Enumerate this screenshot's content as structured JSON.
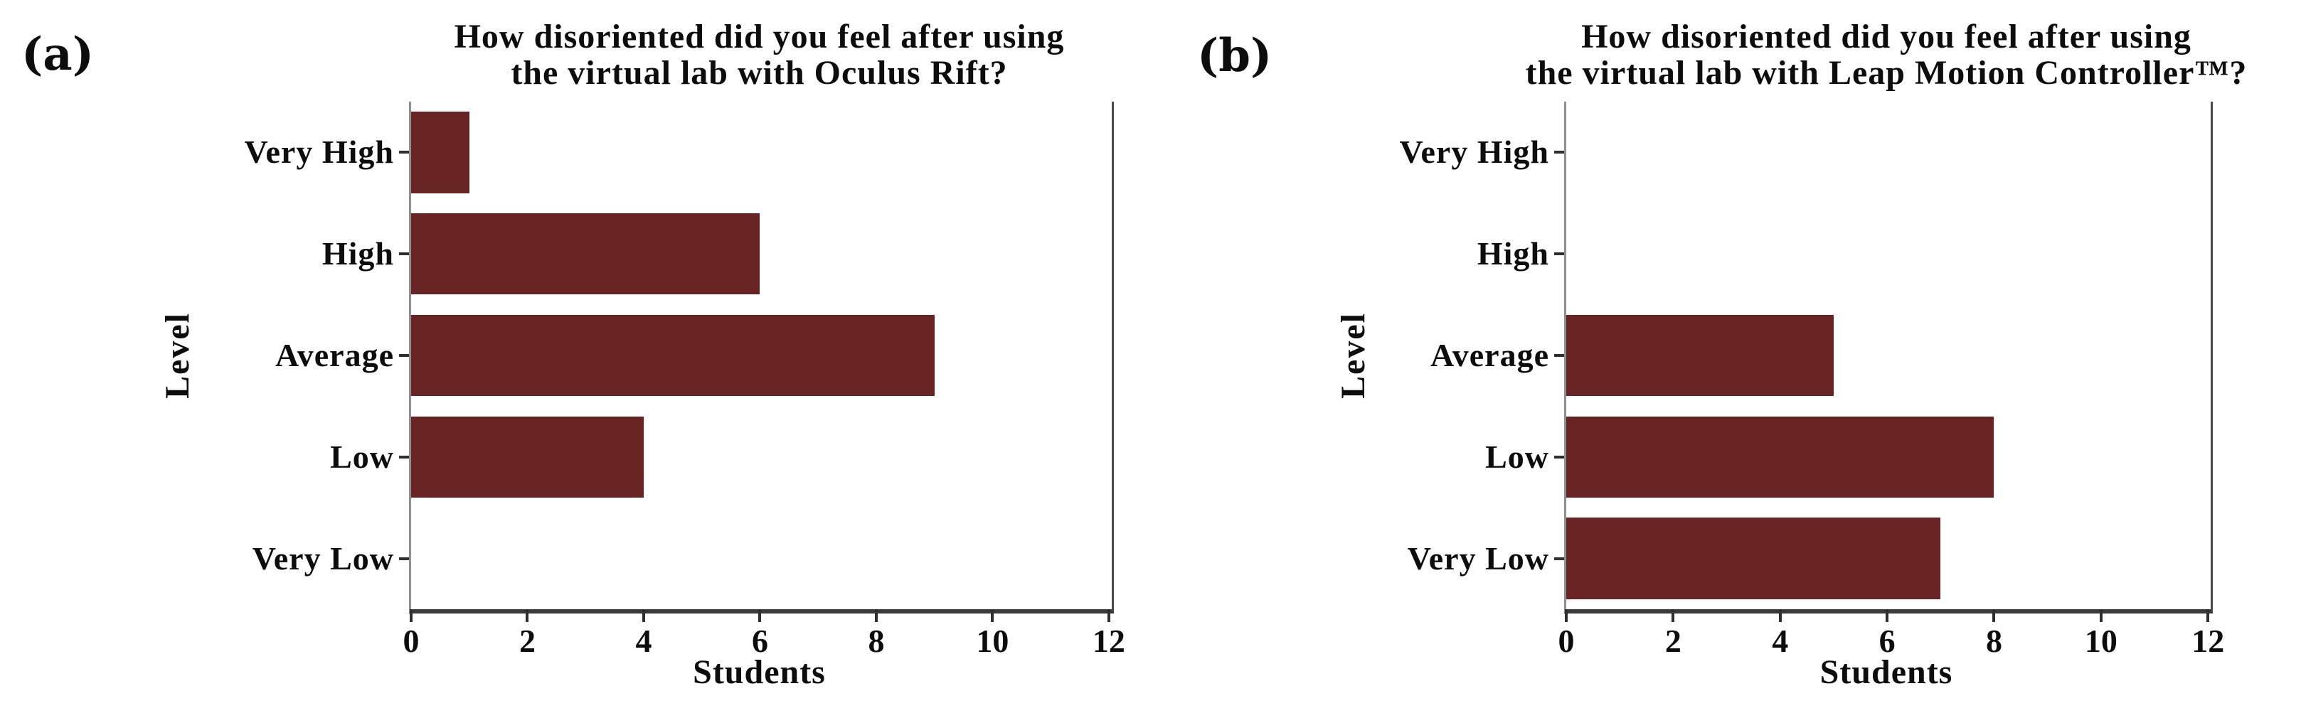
{
  "figure": {
    "background": "#ffffff",
    "text_color": "#0d0d0d",
    "bottom_axis_color": "#3a3a3a",
    "side_spine_color": "#8f8f8f",
    "bar_color": "#672422"
  },
  "chart_data": [
    {
      "type": "bar",
      "orientation": "horizontal",
      "panel_tag": "(a)",
      "title": "How disoriented did you feel after using the virtual lab with Oculus Rift?",
      "title_lines": [
        "How disoriented did you feel after using",
        "the virtual lab with Oculus Rift?"
      ],
      "xlabel": "Students",
      "ylabel": "Level",
      "categories": [
        "Very High",
        "High",
        "Average",
        "Low",
        "Very Low"
      ],
      "values": [
        1,
        6,
        9,
        4,
        0
      ],
      "xticks": [
        0,
        2,
        4,
        6,
        8,
        10,
        12
      ],
      "xlim": [
        0,
        12.05
      ],
      "bar_color": "#672422",
      "bar_height_ratio": 0.8,
      "grid": false,
      "legend": "none"
    },
    {
      "type": "bar",
      "orientation": "horizontal",
      "panel_tag": "(b)",
      "title": "How disoriented did you feel after using the virtual lab with Leap Motion Controller™?",
      "title_lines": [
        "How disoriented did you feel after using",
        "the virtual lab with Leap Motion Controller™?"
      ],
      "xlabel": "Students",
      "ylabel": "Level",
      "categories": [
        "Very High",
        "High",
        "Average",
        "Low",
        "Very Low"
      ],
      "values": [
        0,
        0,
        5,
        8,
        7
      ],
      "xticks": [
        0,
        2,
        4,
        6,
        8,
        10,
        12
      ],
      "xlim": [
        0,
        12.05
      ],
      "bar_color": "#672422",
      "bar_height_ratio": 0.8,
      "grid": false,
      "legend": "none"
    }
  ]
}
